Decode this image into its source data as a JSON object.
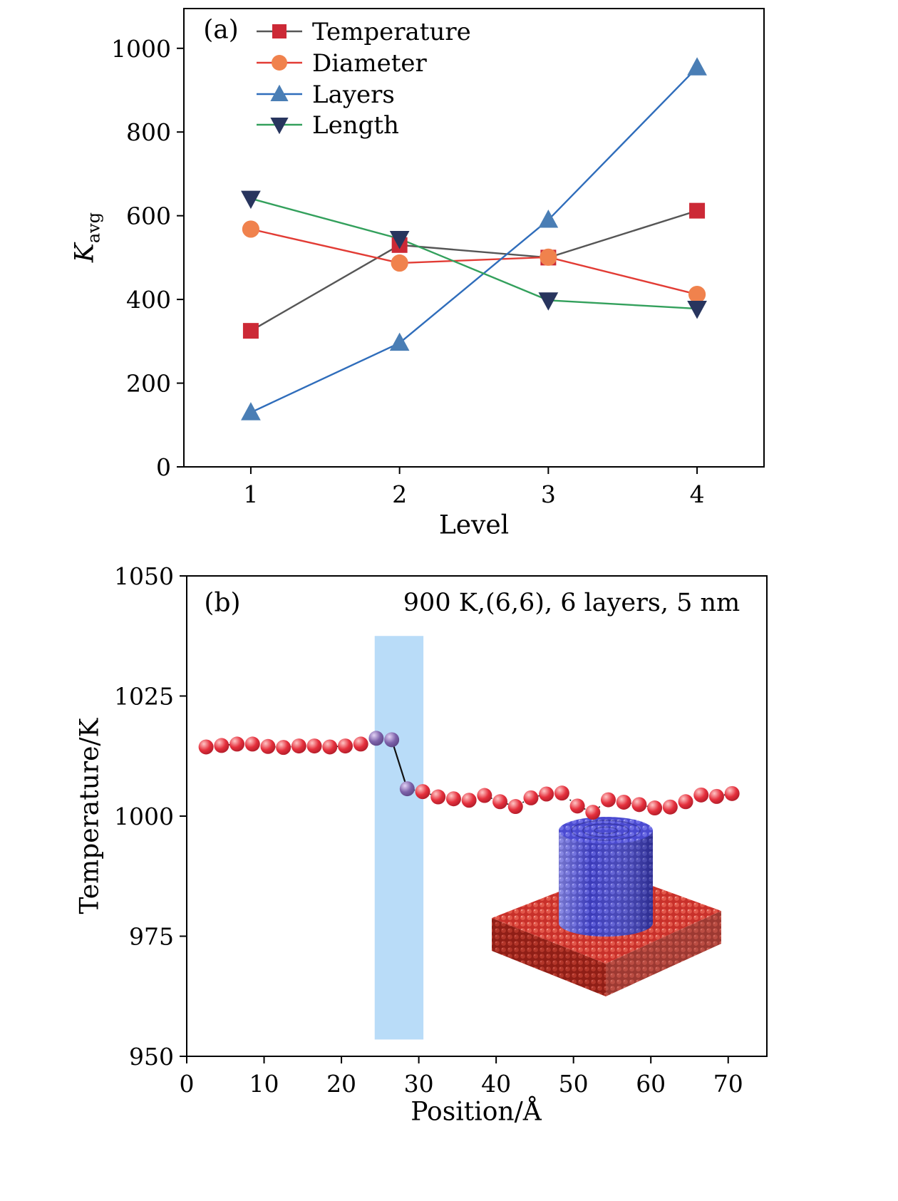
{
  "panel_a": {
    "label": "(a)",
    "ylabel_main": "K",
    "ylabel_sub": "avg"
  },
  "panel_b": {
    "label": "(b)"
  },
  "chart_data": [
    {
      "type": "line",
      "panel": "a",
      "title": "",
      "xlabel": "Level",
      "ylabel": "K_avg",
      "x": [
        1,
        2,
        3,
        4
      ],
      "xlim": [
        0.55,
        4.45
      ],
      "ylim": [
        0,
        1095
      ],
      "xticks": [
        1,
        2,
        3,
        4
      ],
      "yticks": [
        0,
        200,
        400,
        600,
        800,
        1000
      ],
      "grid": false,
      "legend_position": "upper-left",
      "series": [
        {
          "name": "Temperature",
          "marker": "square",
          "marker_color": "#cc2936",
          "line_color": "#565656",
          "values": [
            325,
            530,
            500,
            612
          ]
        },
        {
          "name": "Diameter",
          "marker": "circle",
          "marker_color": "#f0824d",
          "line_color": "#e23c35",
          "values": [
            568,
            487,
            501,
            412
          ]
        },
        {
          "name": "Layers",
          "marker": "triangle-up",
          "marker_color": "#4a7eb5",
          "line_color": "#2f6dbb",
          "values": [
            130,
            296,
            590,
            954
          ]
        },
        {
          "name": "Length",
          "marker": "triangle-down",
          "marker_color": "#28355e",
          "line_color": "#33a05c",
          "values": [
            641,
            545,
            398,
            378
          ]
        }
      ]
    },
    {
      "type": "scatter-line",
      "panel": "b",
      "annotation": "900 K,(6,6), 6 layers, 5 nm",
      "xlabel": "Position/Å",
      "ylabel": "Temperature/K",
      "xlim": [
        0,
        75
      ],
      "ylim": [
        950,
        1050
      ],
      "xticks": [
        0,
        10,
        20,
        30,
        40,
        50,
        60,
        70
      ],
      "yticks": [
        950,
        975,
        1000,
        1025,
        1050
      ],
      "grid": false,
      "highlight_band": {
        "x0": 24.3,
        "x1": 30.6,
        "y0": 953.5,
        "y1": 1037.5,
        "color": "#b9dcf8"
      },
      "marker_color": "#e5303d",
      "purple_marker_color": "#7d62aa",
      "purple_indices": [
        11,
        12,
        13
      ],
      "solid_segment": [
        12,
        13
      ],
      "line_style": "dotted",
      "points": [
        [
          2.5,
          1014.4
        ],
        [
          4.5,
          1014.7
        ],
        [
          6.5,
          1015.0
        ],
        [
          8.5,
          1015.0
        ],
        [
          10.5,
          1014.5
        ],
        [
          12.5,
          1014.3
        ],
        [
          14.5,
          1014.6
        ],
        [
          16.5,
          1014.6
        ],
        [
          18.5,
          1014.4
        ],
        [
          20.5,
          1014.6
        ],
        [
          22.5,
          1015.0
        ],
        [
          24.5,
          1016.2
        ],
        [
          26.5,
          1015.9
        ],
        [
          28.5,
          1005.7
        ],
        [
          30.5,
          1005.1
        ],
        [
          32.5,
          1004.0
        ],
        [
          34.5,
          1003.6
        ],
        [
          36.5,
          1003.3
        ],
        [
          38.5,
          1004.3
        ],
        [
          40.5,
          1003.0
        ],
        [
          42.5,
          1002.0
        ],
        [
          44.5,
          1003.8
        ],
        [
          46.5,
          1004.6
        ],
        [
          48.5,
          1004.8
        ],
        [
          50.5,
          1002.1
        ],
        [
          52.5,
          1000.8
        ],
        [
          54.5,
          1003.4
        ],
        [
          56.5,
          1002.9
        ],
        [
          58.5,
          1002.4
        ],
        [
          60.5,
          1001.7
        ],
        [
          62.5,
          1001.9
        ],
        [
          64.5,
          1003.0
        ],
        [
          66.5,
          1004.4
        ],
        [
          68.5,
          1004.1
        ],
        [
          70.5,
          1004.7
        ]
      ]
    }
  ],
  "inset": {
    "description": "carbon nanotube standing on substrate (atomistic render)",
    "tube_color": "#3a3ab8",
    "tube_dot": "#5a5ad8",
    "tube_hi": "#8b8bec",
    "tube_top": "#4a4ad0",
    "tube_top_dot": "#6c6ce4",
    "tube_top_hi": "#9a9af0",
    "substrate_color": "#c8302a",
    "substrate_dot": "#e2574a",
    "substrate_hi": "#f29287",
    "substrate_side": "#8f1e16",
    "substrate_side_dot": "#b23529",
    "substrate_side_hi": "#c9544a"
  }
}
